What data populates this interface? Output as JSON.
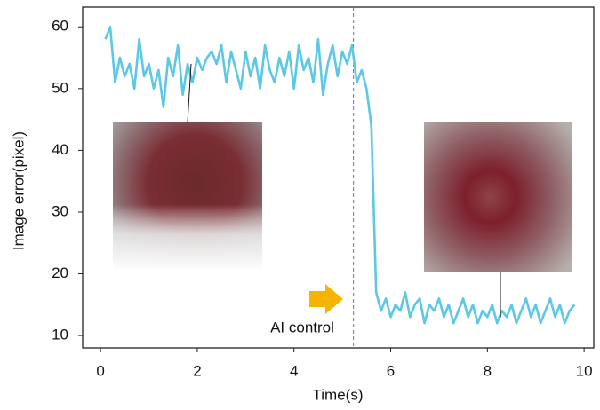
{
  "chart_data": {
    "type": "line",
    "x_label": "Time(s)",
    "y_label": "Image error(pixel)",
    "annotation": "AI control",
    "ai_control_x": 5.23,
    "x": [
      0.1,
      0.2,
      0.3,
      0.4,
      0.5,
      0.6,
      0.7,
      0.8,
      0.9,
      1.0,
      1.1,
      1.2,
      1.3,
      1.4,
      1.5,
      1.6,
      1.7,
      1.8,
      1.9,
      2.0,
      2.1,
      2.2,
      2.3,
      2.4,
      2.5,
      2.6,
      2.7,
      2.8,
      2.9,
      3.0,
      3.1,
      3.2,
      3.3,
      3.4,
      3.5,
      3.6,
      3.7,
      3.8,
      3.9,
      4.0,
      4.1,
      4.2,
      4.3,
      4.4,
      4.5,
      4.6,
      4.7,
      4.8,
      4.9,
      5.0,
      5.1,
      5.2,
      5.3,
      5.4,
      5.5,
      5.6,
      5.7,
      5.8,
      5.9,
      6.0,
      6.1,
      6.2,
      6.3,
      6.4,
      6.5,
      6.6,
      6.7,
      6.8,
      6.9,
      7.0,
      7.1,
      7.2,
      7.3,
      7.4,
      7.5,
      7.6,
      7.7,
      7.8,
      7.9,
      8.0,
      8.1,
      8.2,
      8.3,
      8.4,
      8.5,
      8.6,
      8.7,
      8.8,
      8.9,
      9.0,
      9.1,
      9.2,
      9.3,
      9.4,
      9.5,
      9.6,
      9.7,
      9.8
    ],
    "series": [
      {
        "color": "#5cc8e6",
        "values": [
          58,
          60,
          51,
          55,
          52,
          54,
          50,
          58,
          52,
          54,
          50,
          53,
          47,
          55,
          52,
          57,
          49,
          54,
          51,
          55,
          53,
          55,
          56,
          54,
          57,
          51,
          56,
          53,
          50,
          56,
          52,
          55,
          50,
          57,
          53,
          51,
          55,
          52,
          56,
          50,
          57,
          53,
          55,
          51,
          58,
          49,
          54,
          57,
          52,
          56,
          54,
          57,
          51,
          53,
          50,
          44,
          17,
          14,
          16,
          13,
          15,
          14,
          17,
          13,
          15,
          16,
          12,
          15,
          14,
          16,
          13,
          15,
          12,
          14,
          16,
          13,
          15,
          12,
          14,
          13,
          15,
          12,
          14,
          13,
          15,
          12,
          14,
          16,
          13,
          15,
          12,
          14,
          16,
          13,
          15,
          12,
          14,
          15
        ]
      }
    ],
    "xlim": [
      -0.37,
      10.2
    ],
    "ylim": [
      8,
      63.2
    ],
    "xticks": [
      0,
      2,
      4,
      6,
      8,
      10
    ],
    "yticks": [
      10,
      20,
      30,
      40,
      50,
      60
    ]
  }
}
